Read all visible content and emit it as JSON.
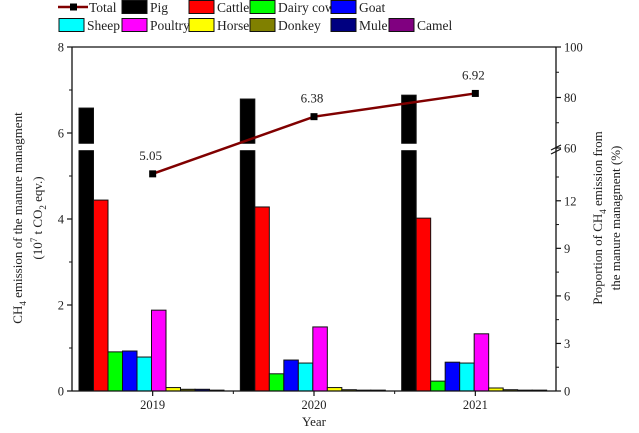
{
  "chart_data": {
    "type": "bar",
    "title": "",
    "xlabel": "Year",
    "ylabel_left": {
      "line1_main": "CH",
      "line1_sub": "4",
      "line1_rest": " emission of the manure managment",
      "line2_pre": "(10",
      "line2_sup": "7",
      "line2_mid": " t CO",
      "line2_sub": "2",
      "line2_rest": " eqv.)"
    },
    "ylabel_right": {
      "line1_main": "Proportion of CH",
      "line1_sub": "4",
      "line1_rest": " emission from",
      "line2": "the manure managment (%)"
    },
    "categories": [
      "2019",
      "2020",
      "2021"
    ],
    "ylim_left": [
      0,
      8
    ],
    "left_ticks": [
      "0",
      "2",
      "4",
      "6",
      "8"
    ],
    "right_axis": {
      "broken": true,
      "lower_range": [
        0,
        13.5
      ],
      "upper_range": [
        60,
        100
      ],
      "lower_ticks": [
        "0",
        "3",
        "6",
        "9",
        "12"
      ],
      "upper_ticks": [
        "60",
        "80",
        "100"
      ]
    },
    "bar_break": {
      "from": 5.6,
      "to": 5.75
    },
    "grid": false,
    "legend_position": "top",
    "series": [
      {
        "name": "Pig",
        "color": "#000000",
        "values": [
          6.58,
          6.79,
          6.88
        ]
      },
      {
        "name": "Cattle",
        "color": "#ff0000",
        "values": [
          4.44,
          4.28,
          4.02
        ]
      },
      {
        "name": "Dairy cow",
        "color": "#00ff00",
        "values": [
          0.91,
          0.4,
          0.23
        ]
      },
      {
        "name": "Goat",
        "color": "#0000ff",
        "values": [
          0.93,
          0.72,
          0.67
        ]
      },
      {
        "name": "Sheep",
        "color": "#00ffff",
        "values": [
          0.79,
          0.65,
          0.65
        ]
      },
      {
        "name": "Poultry",
        "color": "#ff00ff",
        "values": [
          1.88,
          1.49,
          1.33
        ]
      },
      {
        "name": "Horse",
        "color": "#ffff00",
        "values": [
          0.08,
          0.08,
          0.07
        ]
      },
      {
        "name": "Donkey",
        "color": "#808000",
        "values": [
          0.04,
          0.03,
          0.03
        ]
      },
      {
        "name": "Mule",
        "color": "#000080",
        "values": [
          0.04,
          0.02,
          0.02
        ]
      },
      {
        "name": "Camel",
        "color": "#800080",
        "values": [
          0.02,
          0.02,
          0.02
        ]
      }
    ],
    "line_series": {
      "name": "Total",
      "color": "#800000",
      "values": [
        5.05,
        6.38,
        6.92
      ],
      "labels": [
        "5.05",
        "6.38",
        "6.92"
      ]
    }
  }
}
